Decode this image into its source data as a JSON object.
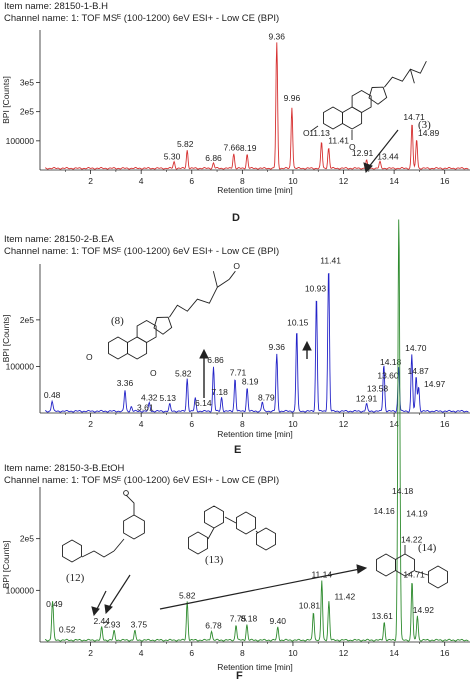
{
  "panels": [
    {
      "id": "D",
      "item_name": "Item name: 28150-1-B.H",
      "channel_name": "Channel name: 1: TOF MSᴱ (100-1200) 6eV ESI+ - Low CE (BPI)",
      "letter": "D",
      "color": "#d63030",
      "compound_labels": [
        "(3)"
      ]
    },
    {
      "id": "E",
      "item_name": "Item name: 28150-2-B.EA",
      "channel_name": "Channel name: 1: TOF MSᴱ (100-1200) 6eV ESI+ - Low CE (BPI)",
      "letter": "E",
      "color": "#2323c8",
      "compound_labels": [
        "(8)"
      ]
    },
    {
      "id": "F",
      "item_name": "Item name: 28150-3-B.EtOH",
      "channel_name": "Channel name: 1: TOF MSᴱ (100-1200) 6eV ESI+ - Low CE (BPI)",
      "letter": "F",
      "color": "#2e8b2e",
      "compound_labels": [
        "(12)",
        "(13)",
        "(14)"
      ]
    }
  ],
  "chart_data": [
    {
      "type": "line",
      "title": "Item name: 28150-1-B.H",
      "xlabel": "Retention time [min]",
      "ylabel": "BPI [Counts]",
      "xlim": [
        0,
        17
      ],
      "ylim": [
        0,
        480000
      ],
      "x_ticks": [
        "2",
        "4",
        "6",
        "8",
        "10",
        "12",
        "14",
        "16"
      ],
      "y_ticks": [
        "100000",
        "2e5",
        "3e5"
      ],
      "y_tick_values": [
        100000,
        200000,
        300000
      ],
      "grid": false,
      "peaks": [
        {
          "x": 5.3,
          "y": 22000,
          "label": "5.30"
        },
        {
          "x": 5.82,
          "y": 62000,
          "label": "5.82"
        },
        {
          "x": 6.86,
          "y": 18000,
          "label": "6.86"
        },
        {
          "x": 7.66,
          "y": 50000,
          "label": "7.66"
        },
        {
          "x": 8.19,
          "y": 48000,
          "label": "8.19"
        },
        {
          "x": 9.36,
          "y": 430000,
          "label": "9.36"
        },
        {
          "x": 9.96,
          "y": 210000,
          "label": "9.96"
        },
        {
          "x": 11.13,
          "y": 90000,
          "label": "11.13"
        },
        {
          "x": 11.41,
          "y": 70000,
          "label": "11.41"
        },
        {
          "x": 12.91,
          "y": 28000,
          "label": "12.91"
        },
        {
          "x": 13.44,
          "y": 22000,
          "label": "13.44"
        },
        {
          "x": 14.71,
          "y": 155000,
          "label": "14.71"
        },
        {
          "x": 14.89,
          "y": 100000,
          "label": "14.89"
        }
      ]
    },
    {
      "type": "line",
      "title": "Item name: 28150-2-B.EA",
      "xlabel": "Retention time [min]",
      "ylabel": "BPI [Counts]",
      "xlim": [
        0,
        17
      ],
      "ylim": [
        0,
        320000
      ],
      "x_ticks": [
        "2",
        "4",
        "6",
        "8",
        "10",
        "12",
        "14",
        "16"
      ],
      "y_ticks": [
        "100000",
        "2e5"
      ],
      "y_tick_values": [
        100000,
        200000
      ],
      "grid": false,
      "peaks": [
        {
          "x": 0.48,
          "y": 22000,
          "label": "0.48"
        },
        {
          "x": 3.36,
          "y": 45000,
          "label": "3.36"
        },
        {
          "x": 4.32,
          "y": 18000,
          "label": "4.32"
        },
        {
          "x": 3.61,
          "y": 10000,
          "label": "3.61"
        },
        {
          "x": 5.13,
          "y": 15000,
          "label": "5.13"
        },
        {
          "x": 5.82,
          "y": 70000,
          "label": "5.82"
        },
        {
          "x": 6.14,
          "y": 28000,
          "label": "6.14"
        },
        {
          "x": 6.86,
          "y": 95000,
          "label": "6.86"
        },
        {
          "x": 7.18,
          "y": 30000,
          "label": "7.18"
        },
        {
          "x": 7.71,
          "y": 70000,
          "label": "7.71"
        },
        {
          "x": 8.19,
          "y": 50000,
          "label": "8.19"
        },
        {
          "x": 8.79,
          "y": 20000,
          "label": "8.79"
        },
        {
          "x": 9.36,
          "y": 122000,
          "label": "9.36"
        },
        {
          "x": 10.15,
          "y": 175000,
          "label": "10.15"
        },
        {
          "x": 10.93,
          "y": 248000,
          "label": "10.93"
        },
        {
          "x": 11.41,
          "y": 310000,
          "label": "11.41"
        },
        {
          "x": 12.91,
          "y": 16000,
          "label": "12.91"
        },
        {
          "x": 13.58,
          "y": 40000,
          "label": "13.58"
        },
        {
          "x": 13.6,
          "y": 65000,
          "label": "13.60"
        },
        {
          "x": 14.18,
          "y": 95000,
          "label": "14.18"
        },
        {
          "x": 14.7,
          "y": 122000,
          "label": "14.70"
        },
        {
          "x": 14.87,
          "y": 75000,
          "label": "14.87"
        },
        {
          "x": 14.97,
          "y": 52000,
          "label": "14.97"
        }
      ]
    },
    {
      "type": "line",
      "title": "Item name: 28150-3-B.EtOH",
      "xlabel": "Retention time [min]",
      "ylabel": "BPI [Counts]",
      "xlim": [
        0,
        17
      ],
      "ylim": [
        0,
        300000
      ],
      "x_ticks": [
        "2",
        "4",
        "6",
        "8",
        "10",
        "12",
        "14",
        "16"
      ],
      "y_ticks": [
        "100000",
        "2e5"
      ],
      "y_tick_values": [
        100000,
        200000
      ],
      "grid": false,
      "peaks": [
        {
          "x": 0.49,
          "y": 60000,
          "label": "0.49"
        },
        {
          "x": 0.52,
          "y": 22000,
          "label": "0.52"
        },
        {
          "x": 2.44,
          "y": 25000,
          "label": "2.44"
        },
        {
          "x": 2.93,
          "y": 18000,
          "label": "2.93"
        },
        {
          "x": 3.75,
          "y": 18000,
          "label": "3.75"
        },
        {
          "x": 5.82,
          "y": 75000,
          "label": "5.82"
        },
        {
          "x": 6.78,
          "y": 18000,
          "label": "6.78"
        },
        {
          "x": 7.75,
          "y": 30000,
          "label": "7.75"
        },
        {
          "x": 8.18,
          "y": 30000,
          "label": "8.18"
        },
        {
          "x": 9.4,
          "y": 25000,
          "label": "9.40"
        },
        {
          "x": 10.81,
          "y": 55000,
          "label": "10.81"
        },
        {
          "x": 11.14,
          "y": 115000,
          "label": "11.14"
        },
        {
          "x": 11.42,
          "y": 75000,
          "label": "11.42"
        },
        {
          "x": 13.61,
          "y": 35000,
          "label": "13.61"
        },
        {
          "x": 14.16,
          "y": 240000,
          "label": "14.16"
        },
        {
          "x": 14.18,
          "y": 275000,
          "label": "14.18"
        },
        {
          "x": 14.19,
          "y": 255000,
          "label": "14.19"
        },
        {
          "x": 14.22,
          "y": 220000,
          "label": "14.22"
        },
        {
          "x": 14.71,
          "y": 115000,
          "label": "14.71"
        },
        {
          "x": 14.92,
          "y": 48000,
          "label": "14.92"
        }
      ]
    }
  ]
}
